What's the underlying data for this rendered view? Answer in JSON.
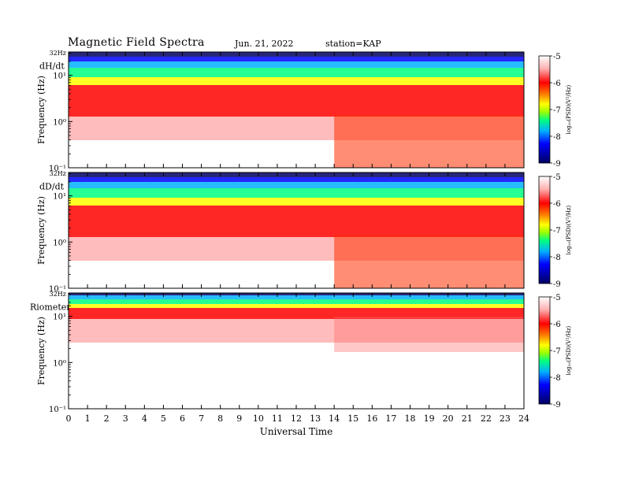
{
  "header": {
    "title": "Magnetic  Field  Spectra",
    "date": "Jun. 21, 2022",
    "station": "station=KAP"
  },
  "colors": {
    "scale": [
      "#000060",
      "#0000ff",
      "#00b0ff",
      "#00ff80",
      "#a0ff00",
      "#ffff00",
      "#ff8000",
      "#ff0000",
      "#ffb0b0",
      "#ffffff"
    ]
  },
  "chart_data": [
    {
      "type": "heatmap",
      "panel_label": "dH/dt",
      "xlabel": "",
      "ylabel": "Frequency  (Hz)",
      "x_range": [
        0,
        24
      ],
      "y_scale": "log",
      "y_range_hz": [
        0.1,
        32
      ],
      "y_tick_labels": [
        "32Hz",
        "10¹",
        "10⁰",
        "10⁻¹"
      ],
      "y_tick_values_hz": [
        32,
        10,
        1,
        0.1
      ],
      "colorbar": {
        "label": "log₁₀(PSD)(V²/Hz)",
        "range": [
          -9,
          -5
        ],
        "tick_values": [
          -5,
          -6,
          -7,
          -8,
          -9
        ],
        "tick_labels": [
          "-5",
          "-6",
          "-7",
          "-8",
          "-9"
        ]
      }
    },
    {
      "type": "heatmap",
      "panel_label": "dD/dt",
      "xlabel": "",
      "ylabel": "Frequency  (Hz)",
      "x_range": [
        0,
        24
      ],
      "y_scale": "log",
      "y_range_hz": [
        0.1,
        32
      ],
      "y_tick_labels": [
        "32Hz",
        "10¹",
        "10⁰",
        "10⁻¹"
      ],
      "y_tick_values_hz": [
        32,
        10,
        1,
        0.1
      ],
      "colorbar": {
        "label": "log₁₀(PSD)(V²/Hz)",
        "range": [
          -9,
          -5
        ],
        "tick_values": [
          -5,
          -6,
          -7,
          -8,
          -9
        ],
        "tick_labels": [
          "-5",
          "-6",
          "-7",
          "-8",
          "-9"
        ]
      }
    },
    {
      "type": "heatmap",
      "panel_label": "Riometer",
      "xlabel": "Universal  Time",
      "ylabel": "Frequency  (Hz)",
      "x_range": [
        0,
        24
      ],
      "x_tick_values": [
        0,
        1,
        2,
        3,
        4,
        5,
        6,
        7,
        8,
        9,
        10,
        11,
        12,
        13,
        14,
        15,
        16,
        17,
        18,
        19,
        20,
        21,
        22,
        23,
        24
      ],
      "x_tick_labels": [
        "0",
        "1",
        "2",
        "3",
        "4",
        "5",
        "6",
        "7",
        "8",
        "9",
        "10",
        "11",
        "12",
        "13",
        "14",
        "15",
        "16",
        "17",
        "18",
        "19",
        "20",
        "21",
        "22",
        "23",
        "24"
      ],
      "y_scale": "log",
      "y_range_hz": [
        0.1,
        32
      ],
      "y_tick_labels": [
        "32Hz",
        "10¹",
        "10⁰",
        "10⁻¹"
      ],
      "y_tick_values_hz": [
        32,
        10,
        1,
        0.1
      ],
      "colorbar": {
        "label": "log₁₀(PSD)(V²/Hz)",
        "range": [
          -9,
          -5
        ],
        "tick_values": [
          -5,
          -6,
          -7,
          -8,
          -9
        ],
        "tick_labels": [
          "-5",
          "-6",
          "-7",
          "-8",
          "-9"
        ]
      }
    }
  ]
}
